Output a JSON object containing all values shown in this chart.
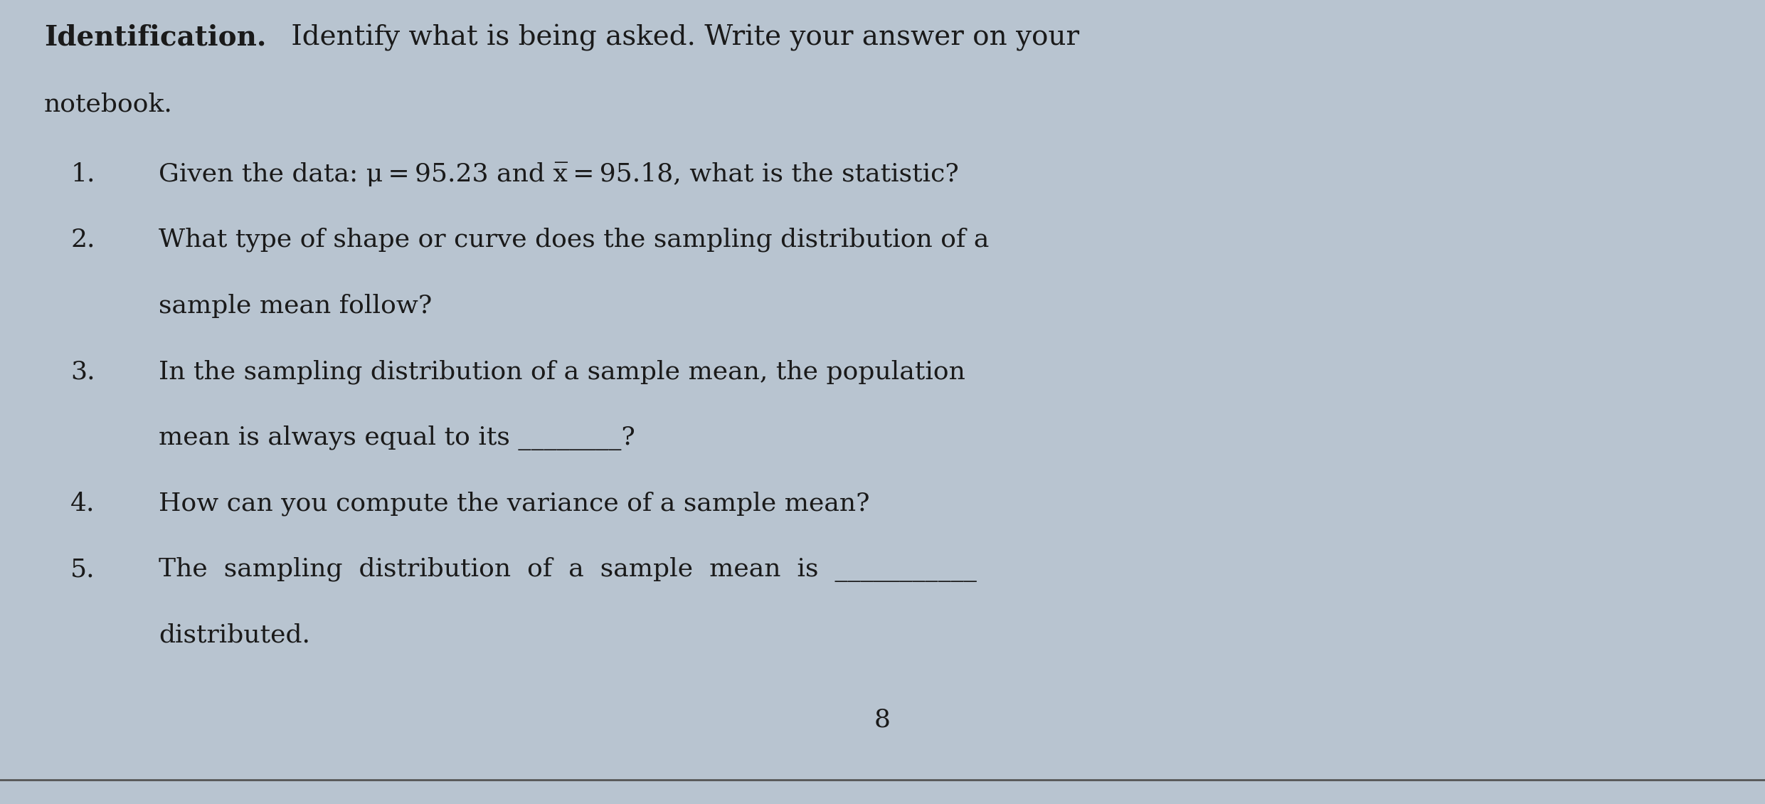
{
  "background_color": "#b8c4d0",
  "text_color": "#1a1a1a",
  "title_bold": "Identification.",
  "title_normal": " Identify what is being asked. Write your answer on your",
  "subtitle": "notebook.",
  "items": [
    {
      "num": "1.",
      "text": "Given the data: μ = 95.23 and x̅ = 95.18, what is the statistic?"
    },
    {
      "num": "2.",
      "text": "What type of shape or curve does the sampling distribution of a\nsample mean follow?"
    },
    {
      "num": "3.",
      "text": "In the sampling distribution of a sample mean, the population\nmean is always equal to its ________?"
    },
    {
      "num": "4.",
      "text": "How can you compute the variance of a sample mean?"
    },
    {
      "num": "5.",
      "text": "The  sampling  distribution  of  a  sample  mean  is  ___________\ndistributed."
    }
  ],
  "page_number": "8",
  "line_color": "#555555",
  "font_size_title": 28,
  "font_size_body": 26,
  "font_size_page": 26,
  "indent_num": 0.04,
  "indent_text": 0.09
}
